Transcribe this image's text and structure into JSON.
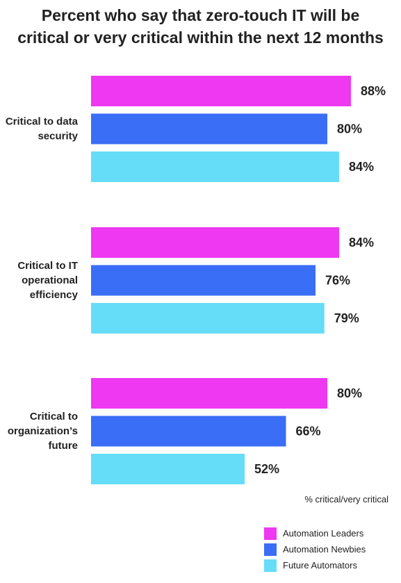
{
  "title_lines": [
    "Percent who say that zero-touch IT will be",
    "critical or very critical within the next 12 months"
  ],
  "note": "% critical/very critical",
  "legend_items": [
    {
      "label": "Automation Leaders",
      "color": "#EE38F2"
    },
    {
      "label": "Automation Newbies",
      "color": "#3B6EF6"
    },
    {
      "label": "Future Automators",
      "color": "#65DDF9"
    }
  ],
  "chart_data": {
    "type": "bar",
    "orientation": "horizontal",
    "title": "Percent who say that zero-touch IT will be critical or very critical within the next 12 months",
    "categories": [
      [
        "Critical to data",
        "security"
      ],
      [
        "Critical to IT",
        "operational",
        "efficiency"
      ],
      [
        "Critical to",
        "organization’s",
        "future"
      ]
    ],
    "series": [
      {
        "name": "Automation Leaders",
        "color": "#EE38F2",
        "values": [
          88,
          84,
          80
        ],
        "labels": [
          "88%",
          "84%",
          "80%"
        ]
      },
      {
        "name": "Automation Newbies",
        "color": "#3B6EF6",
        "values": [
          80,
          76,
          66
        ],
        "labels": [
          "80%",
          "76%",
          "66%"
        ]
      },
      {
        "name": "Future Automators",
        "color": "#65DDF9",
        "values": [
          84,
          79,
          52
        ],
        "labels": [
          "84%",
          "79%",
          "52%"
        ]
      }
    ],
    "unit": "%",
    "xlim": [
      0,
      100
    ],
    "grid": false,
    "legend_position": "bottom-right"
  }
}
